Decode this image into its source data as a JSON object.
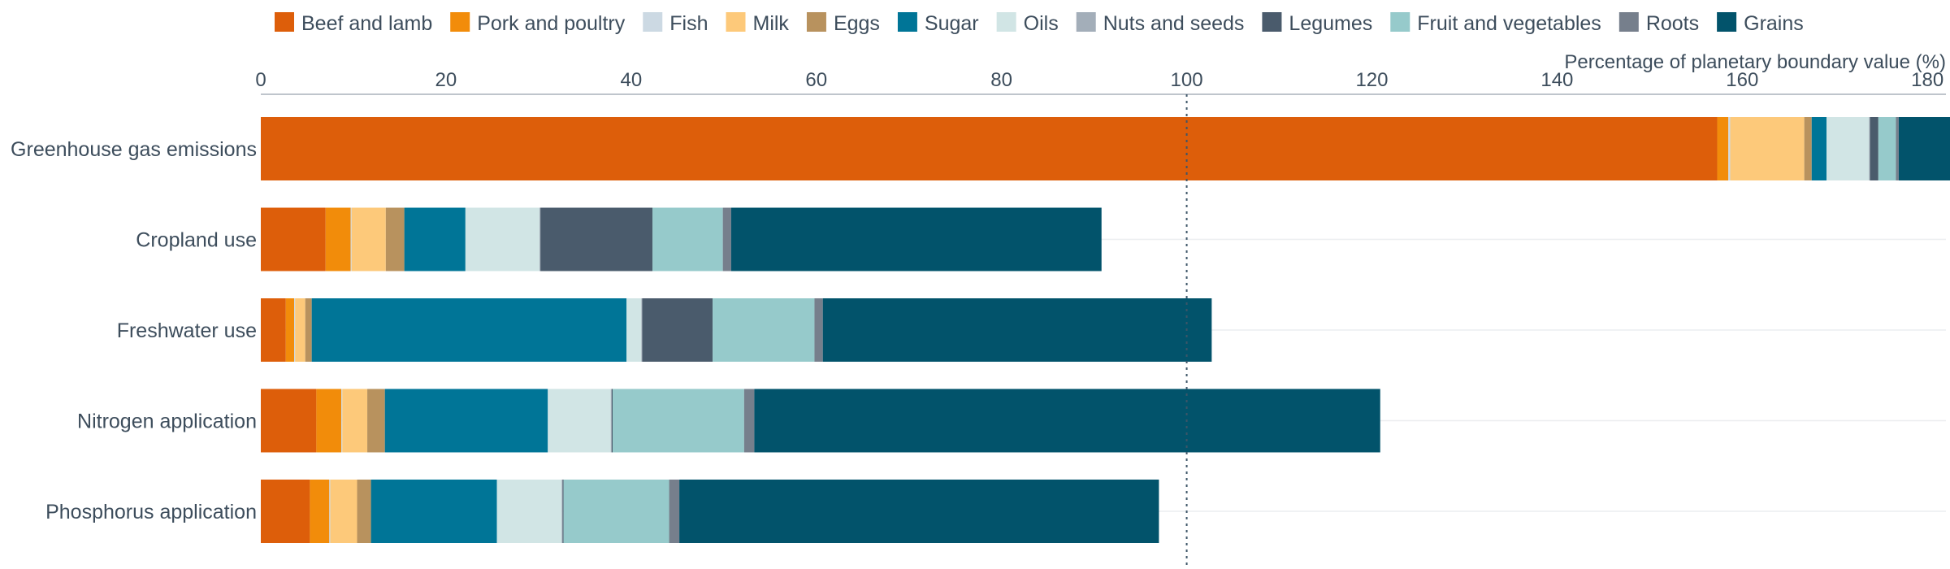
{
  "chart_data": {
    "type": "bar",
    "orientation": "horizontal",
    "stacked": true,
    "xlabel": "Percentage of planetary boundary value (%)",
    "xlim": [
      0,
      182
    ],
    "xticks": [
      0,
      20,
      40,
      60,
      80,
      100,
      120,
      140,
      160,
      180
    ],
    "reference_line": 100,
    "legend_position": "top",
    "categories": [
      "Greenhouse gas emissions",
      "Cropland use",
      "Freshwater use",
      "Nitrogen application",
      "Phosphorus application"
    ],
    "series": [
      {
        "name": "Beef and lamb",
        "color": "#dd5e0a",
        "values": [
          157.3,
          7.0,
          2.7,
          6.0,
          5.3
        ]
      },
      {
        "name": "Pork and poultry",
        "color": "#f28c0a",
        "values": [
          1.2,
          2.7,
          0.9,
          2.7,
          2.1
        ]
      },
      {
        "name": "Fish",
        "color": "#ccd9e3",
        "values": [
          0.2,
          0.1,
          0.1,
          0.1,
          0.1
        ]
      },
      {
        "name": "Milk",
        "color": "#fdc97a",
        "values": [
          8.0,
          3.7,
          1.1,
          2.7,
          2.9
        ]
      },
      {
        "name": "Eggs",
        "color": "#b8925e",
        "values": [
          0.8,
          2.0,
          0.7,
          1.9,
          1.5
        ]
      },
      {
        "name": "Sugar",
        "color": "#007597",
        "values": [
          1.6,
          6.6,
          34.0,
          17.6,
          13.6
        ]
      },
      {
        "name": "Oils",
        "color": "#d1e5e5",
        "values": [
          4.6,
          8.0,
          1.6,
          6.8,
          7.0
        ]
      },
      {
        "name": "Nuts and seeds",
        "color": "#a3aeb9",
        "values": [
          0.1,
          0.1,
          0.1,
          0.1,
          0.1
        ]
      },
      {
        "name": "Legumes",
        "color": "#4a5b6c",
        "values": [
          0.9,
          12.1,
          7.6,
          0.1,
          0.1
        ]
      },
      {
        "name": "Fruit and vegetables",
        "color": "#96cacb",
        "values": [
          1.9,
          7.6,
          11.0,
          14.2,
          11.4
        ]
      },
      {
        "name": "Roots",
        "color": "#767f8c",
        "values": [
          0.3,
          0.9,
          0.9,
          1.1,
          1.1
        ]
      },
      {
        "name": "Grains",
        "color": "#02536b",
        "values": [
          5.9,
          40.0,
          42.0,
          67.6,
          51.8
        ]
      }
    ]
  }
}
